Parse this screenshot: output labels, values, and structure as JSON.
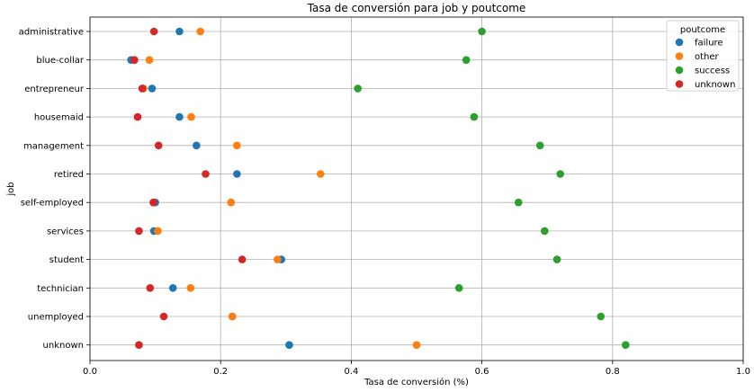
{
  "chart_data": {
    "type": "scatter",
    "title": "Tasa de conversión para job y poutcome",
    "xlabel": "Tasa de conversión (%)",
    "ylabel": "job",
    "xlim": [
      0,
      1.0
    ],
    "xticks": [
      "0.0",
      "0.2",
      "0.4",
      "0.6",
      "0.8",
      "1.0"
    ],
    "grid": true,
    "categories": [
      "administrative",
      "blue-collar",
      "entrepreneur",
      "housemaid",
      "management",
      "retired",
      "self-employed",
      "services",
      "student",
      "technician",
      "unemployed",
      "unknown"
    ],
    "legend": {
      "title": "poutcome",
      "placement": "top-right"
    },
    "series": [
      {
        "name": "failure",
        "color": "#1f77b4",
        "values": [
          0.137,
          0.063,
          0.095,
          0.137,
          0.163,
          0.225,
          0.1,
          0.098,
          0.293,
          0.127,
          0.218,
          0.305
        ]
      },
      {
        "name": "other",
        "color": "#ff7f0e",
        "values": [
          0.169,
          0.091,
          0.082,
          0.155,
          0.225,
          0.353,
          0.216,
          0.104,
          0.287,
          0.154,
          0.218,
          0.5
        ]
      },
      {
        "name": "success",
        "color": "#2ca02c",
        "values": [
          0.6,
          0.576,
          0.41,
          0.588,
          0.689,
          0.72,
          0.656,
          0.696,
          0.715,
          0.565,
          0.782,
          0.82
        ]
      },
      {
        "name": "unknown",
        "color": "#d62728",
        "values": [
          0.098,
          0.068,
          0.08,
          0.073,
          0.105,
          0.177,
          0.097,
          0.075,
          0.233,
          0.092,
          0.113,
          0.075
        ]
      }
    ]
  }
}
